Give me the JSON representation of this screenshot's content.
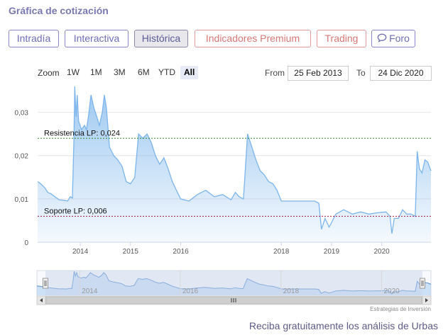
{
  "section_title": "Gráfica de cotización",
  "tabs": [
    {
      "label": "Intradía",
      "style": "default"
    },
    {
      "label": "Interactiva",
      "style": "default"
    },
    {
      "label": "Histórica",
      "style": "active"
    },
    {
      "label": "Indicadores Premium",
      "style": "premium"
    },
    {
      "label": "Trading",
      "style": "premium"
    },
    {
      "label": "Foro",
      "style": "default",
      "icon": "speech-bubble-icon"
    }
  ],
  "range_selector": {
    "zoom_label": "Zoom",
    "buttons": [
      "1W",
      "1M",
      "3M",
      "6M",
      "YTD",
      "All"
    ],
    "selected": "All",
    "from_label": "From",
    "from_value": "25 Feb 2013",
    "to_label": "To",
    "to_value": "24 Dic 2020"
  },
  "chart_data": {
    "type": "area",
    "title": "",
    "xlabel": "",
    "ylabel": "",
    "x_range": [
      "2013-02-25",
      "2020-12-24"
    ],
    "ylim": [
      0,
      0.035
    ],
    "y_ticks": [
      "0",
      "0,01",
      "0,02",
      "0,03"
    ],
    "x_ticks": [
      "2014",
      "2015",
      "2016",
      "2018",
      "2019",
      "2020"
    ],
    "grid": true,
    "series": [
      {
        "color": "#7cb5ec",
        "points": [
          [
            "2013-02-25",
            0.014
          ],
          [
            "2013-03-20",
            0.0135
          ],
          [
            "2013-04-20",
            0.0125
          ],
          [
            "2013-05-10",
            0.0115
          ],
          [
            "2013-06-01",
            0.0112
          ],
          [
            "2013-07-01",
            0.0105
          ],
          [
            "2013-08-01",
            0.0098
          ],
          [
            "2013-09-01",
            0.0097
          ],
          [
            "2013-10-01",
            0.0095
          ],
          [
            "2013-10-20",
            0.0105
          ],
          [
            "2013-11-05",
            0.0102
          ],
          [
            "2013-11-15",
            0.023
          ],
          [
            "2013-11-22",
            0.036
          ],
          [
            "2013-12-01",
            0.029
          ],
          [
            "2013-12-10",
            0.034
          ],
          [
            "2013-12-20",
            0.028
          ],
          [
            "2014-01-10",
            0.026
          ],
          [
            "2014-02-01",
            0.027
          ],
          [
            "2014-02-15",
            0.026
          ],
          [
            "2014-03-01",
            0.029
          ],
          [
            "2014-03-20",
            0.034
          ],
          [
            "2014-04-10",
            0.031
          ],
          [
            "2014-05-01",
            0.029
          ],
          [
            "2014-05-20",
            0.027
          ],
          [
            "2014-06-10",
            0.03
          ],
          [
            "2014-06-25",
            0.034
          ],
          [
            "2014-07-10",
            0.031
          ],
          [
            "2014-08-01",
            0.022
          ],
          [
            "2014-09-01",
            0.02
          ],
          [
            "2014-10-01",
            0.019
          ],
          [
            "2014-11-01",
            0.0175
          ],
          [
            "2014-12-01",
            0.014
          ],
          [
            "2015-01-01",
            0.0135
          ],
          [
            "2015-02-01",
            0.015
          ],
          [
            "2015-03-01",
            0.025
          ],
          [
            "2015-04-01",
            0.024
          ],
          [
            "2015-05-01",
            0.025
          ],
          [
            "2015-06-01",
            0.023
          ],
          [
            "2015-07-01",
            0.02
          ],
          [
            "2015-08-01",
            0.018
          ],
          [
            "2015-09-01",
            0.0195
          ],
          [
            "2015-10-01",
            0.017
          ],
          [
            "2015-11-01",
            0.014
          ],
          [
            "2015-12-01",
            0.012
          ],
          [
            "2016-01-01",
            0.01
          ],
          [
            "2016-03-01",
            0.0095
          ],
          [
            "2016-05-01",
            0.011
          ],
          [
            "2016-07-01",
            0.012
          ],
          [
            "2016-09-01",
            0.0105
          ],
          [
            "2016-11-01",
            0.011
          ],
          [
            "2017-01-01",
            0.0098
          ],
          [
            "2017-02-01",
            0.0115
          ],
          [
            "2017-03-01",
            0.0105
          ],
          [
            "2017-04-01",
            0.01
          ],
          [
            "2017-05-01",
            0.025
          ],
          [
            "2017-06-01",
            0.022
          ],
          [
            "2017-07-01",
            0.019
          ],
          [
            "2017-08-01",
            0.0165
          ],
          [
            "2017-09-01",
            0.0155
          ],
          [
            "2017-10-01",
            0.014
          ],
          [
            "2017-11-01",
            0.0135
          ],
          [
            "2017-12-01",
            0.012
          ],
          [
            "2018-01-01",
            0.0095
          ],
          [
            "2018-03-01",
            0.0095
          ],
          [
            "2018-06-01",
            0.0095
          ],
          [
            "2018-09-01",
            0.0095
          ],
          [
            "2018-10-01",
            0.009
          ],
          [
            "2018-10-20",
            0.003
          ],
          [
            "2018-11-15",
            0.0055
          ],
          [
            "2018-12-15",
            0.0035
          ],
          [
            "2019-01-01",
            0.0045
          ],
          [
            "2019-02-01",
            0.0065
          ],
          [
            "2019-04-01",
            0.0075
          ],
          [
            "2019-06-01",
            0.0065
          ],
          [
            "2019-08-01",
            0.007
          ],
          [
            "2019-10-01",
            0.0065
          ],
          [
            "2019-12-01",
            0.0068
          ],
          [
            "2020-02-01",
            0.007
          ],
          [
            "2020-03-01",
            0.006
          ],
          [
            "2020-03-15",
            0.002
          ],
          [
            "2020-04-01",
            0.0055
          ],
          [
            "2020-05-01",
            0.0055
          ],
          [
            "2020-06-01",
            0.0075
          ],
          [
            "2020-07-01",
            0.0065
          ],
          [
            "2020-08-01",
            0.0065
          ],
          [
            "2020-09-01",
            0.006
          ],
          [
            "2020-09-15",
            0.021
          ],
          [
            "2020-10-01",
            0.017
          ],
          [
            "2020-10-20",
            0.016
          ],
          [
            "2020-11-10",
            0.019
          ],
          [
            "2020-12-01",
            0.0185
          ],
          [
            "2020-12-24",
            0.0165
          ]
        ]
      }
    ],
    "annotations": [
      {
        "label": "Resistencia LP: 0,024",
        "value": 0.024,
        "color": "#2e8b2e"
      },
      {
        "label": "Soporte LP: 0,006",
        "value": 0.006,
        "color": "#a01c3c"
      }
    ],
    "navigator": {
      "x_ticks": [
        "2014",
        "2016",
        "2018",
        "2020"
      ],
      "scroll_icon": "grip-icon"
    }
  },
  "credits": "Estrategias de Inversión",
  "promo_text": "Reciba gratuitamente los análisis de Urbas"
}
